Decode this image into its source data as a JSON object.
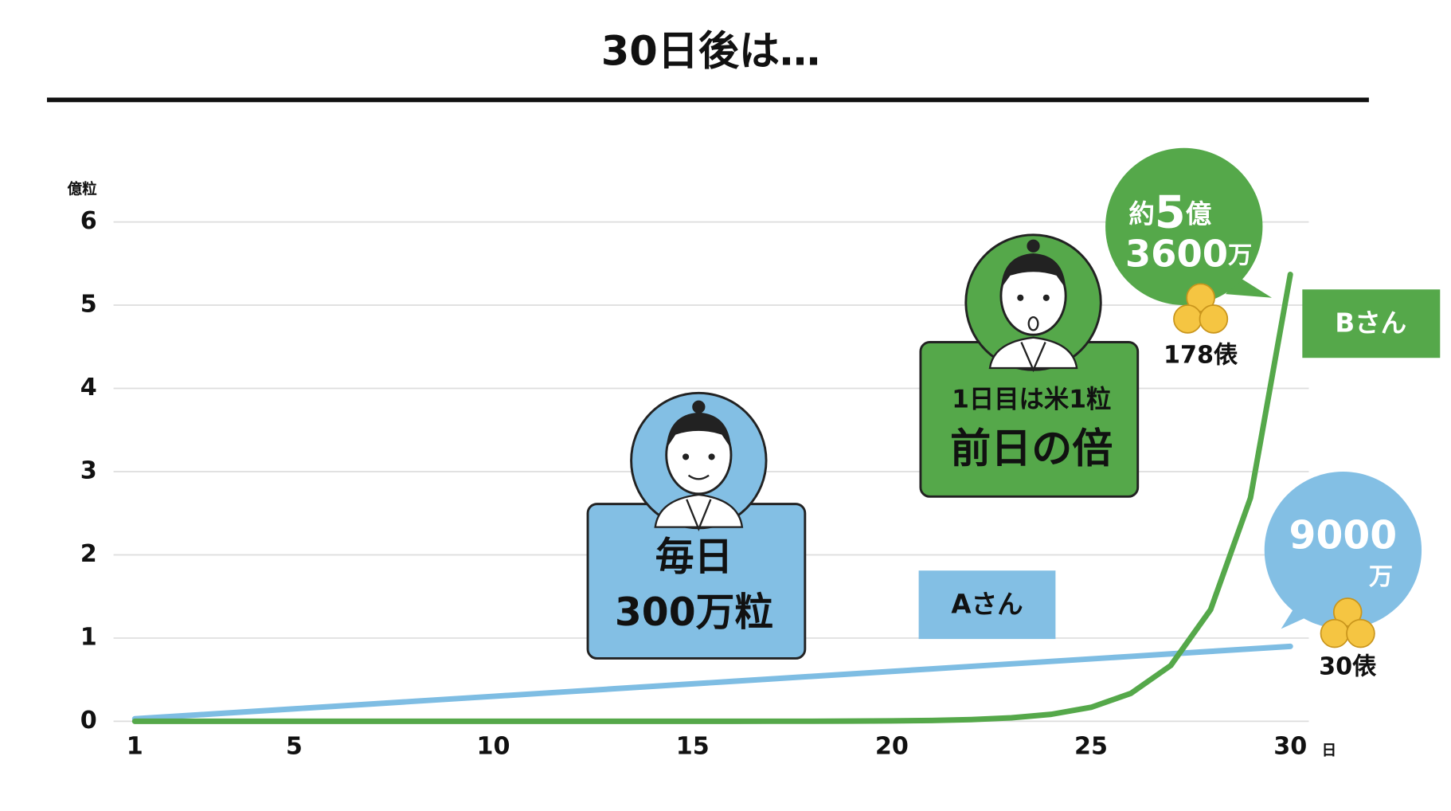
{
  "chart_data": {
    "type": "line",
    "title": "30日後は…",
    "y_unit": "億粒",
    "x_unit": "日",
    "x": [
      1,
      2,
      3,
      4,
      5,
      6,
      7,
      8,
      9,
      10,
      11,
      12,
      13,
      14,
      15,
      16,
      17,
      18,
      19,
      20,
      21,
      22,
      23,
      24,
      25,
      26,
      27,
      28,
      29,
      30
    ],
    "xlim": [
      1,
      30
    ],
    "xticks": [
      1,
      5,
      10,
      15,
      20,
      25,
      30
    ],
    "ylim": [
      0,
      6
    ],
    "yticks": [
      0,
      1,
      2,
      3,
      4,
      5,
      6
    ],
    "grid": true,
    "series": [
      {
        "name": "Aさん",
        "color": "#7ebde3",
        "values": [
          0.03,
          0.06,
          0.09,
          0.12,
          0.15,
          0.18,
          0.21,
          0.24,
          0.27,
          0.3,
          0.33,
          0.36,
          0.39,
          0.42,
          0.45,
          0.48,
          0.51,
          0.54,
          0.57,
          0.6,
          0.63,
          0.66,
          0.69,
          0.72,
          0.75,
          0.78,
          0.81,
          0.84,
          0.87,
          0.9
        ]
      },
      {
        "name": "Bさん",
        "color": "#55a84a",
        "values": [
          0,
          0,
          0,
          0,
          0,
          0,
          0,
          0,
          0,
          0,
          0,
          0,
          0,
          0,
          0,
          0,
          0.001,
          0.001,
          0.003,
          0.005,
          0.01,
          0.021,
          0.042,
          0.084,
          0.168,
          0.336,
          0.671,
          1.342,
          2.684,
          5.369
        ]
      }
    ],
    "annotations": {
      "b_bubble": {
        "line1": [
          "約",
          "5",
          "億"
        ],
        "line2": [
          "3600",
          "万"
        ],
        "bales": "178俵"
      },
      "a_bubble": {
        "line1": "9000",
        "line2": "万",
        "bales": "30俵"
      },
      "a_box": [
        "毎日",
        "300万粒"
      ],
      "b_box": [
        "1日目は米1粒",
        "前日の倍"
      ]
    }
  }
}
